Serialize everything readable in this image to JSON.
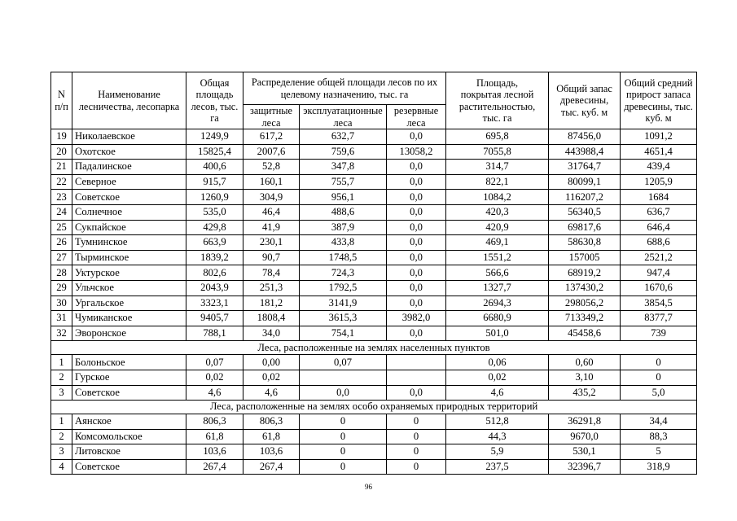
{
  "page": {
    "number": "96"
  },
  "table": {
    "header": {
      "col_n": "N\nп/п",
      "col_name": "Наименование\nлесничества, лесопарка",
      "col_total_area": "Общая\nплощадь\nлесов, тыс. га",
      "col_distribution_group": "Распределение общей площади лесов по их\nцелевому назначению, тыс. га",
      "col_protective": "защитные\nлеса",
      "col_operational": "эксплуатационные\nлеса",
      "col_reserve": "резервные\nлеса",
      "col_covered": "Площадь,\nпокрытая лесной\nрастительностью,\nтыс. га",
      "col_stock": "Общий запас\nдревесины,\nтыс. куб. м",
      "col_growth": "Общий средний\nприрост запаса\nдревесины, тыс.\nкуб. м"
    },
    "sections": [
      {
        "title": "",
        "rows": [
          [
            "19",
            "Николаевское",
            "1249,9",
            "617,2",
            "632,7",
            "0,0",
            "695,8",
            "87456,0",
            "1091,2"
          ],
          [
            "20",
            "Охотское",
            "15825,4",
            "2007,6",
            "759,6",
            "13058,2",
            "7055,8",
            "443988,4",
            "4651,4"
          ],
          [
            "21",
            "Падалинское",
            "400,6",
            "52,8",
            "347,8",
            "0,0",
            "314,7",
            "31764,7",
            "439,4"
          ],
          [
            "22",
            "Северное",
            "915,7",
            "160,1",
            "755,7",
            "0,0",
            "822,1",
            "80099,1",
            "1205,9"
          ],
          [
            "23",
            "Советское",
            "1260,9",
            "304,9",
            "956,1",
            "0,0",
            "1084,2",
            "116207,2",
            "1684"
          ],
          [
            "24",
            "Солнечное",
            "535,0",
            "46,4",
            "488,6",
            "0,0",
            "420,3",
            "56340,5",
            "636,7"
          ],
          [
            "25",
            "Сукпайское",
            "429,8",
            "41,9",
            "387,9",
            "0,0",
            "420,9",
            "69817,6",
            "646,4"
          ],
          [
            "26",
            "Тумнинское",
            "663,9",
            "230,1",
            "433,8",
            "0,0",
            "469,1",
            "58630,8",
            "688,6"
          ],
          [
            "27",
            "Тырминское",
            "1839,2",
            "90,7",
            "1748,5",
            "0,0",
            "1551,2",
            "157005",
            "2521,2"
          ],
          [
            "28",
            "Уктурское",
            "802,6",
            "78,4",
            "724,3",
            "0,0",
            "566,6",
            "68919,2",
            "947,4"
          ],
          [
            "29",
            "Ульчское",
            "2043,9",
            "251,3",
            "1792,5",
            "0,0",
            "1327,7",
            "137430,2",
            "1670,6"
          ],
          [
            "30",
            "Ургальское",
            "3323,1",
            "181,2",
            "3141,9",
            "0,0",
            "2694,3",
            "298056,2",
            "3854,5"
          ],
          [
            "31",
            "Чумиканское",
            "9405,7",
            "1808,4",
            "3615,3",
            "3982,0",
            "6680,9",
            "713349,2",
            "8377,7"
          ],
          [
            "32",
            "Эворонское",
            "788,1",
            "34,0",
            "754,1",
            "0,0",
            "501,0",
            "45458,6",
            "739"
          ]
        ]
      },
      {
        "title": "Леса, расположенные на землях населенных пунктов",
        "rows": [
          [
            "1",
            "Болоньское",
            "0,07",
            "0,00",
            "0,07",
            "",
            "0,06",
            "0,60",
            "0"
          ],
          [
            "2",
            "Гурское",
            "0,02",
            "0,02",
            "",
            "",
            "0,02",
            "3,10",
            "0"
          ],
          [
            "3",
            "Советское",
            "4,6",
            "4,6",
            "0,0",
            "0,0",
            "4,6",
            "435,2",
            "5,0"
          ]
        ]
      },
      {
        "title": "Леса, расположенные на землях особо охраняемых природных территорий",
        "rows": [
          [
            "1",
            "Аянское",
            "806,3",
            "806,3",
            "0",
            "0",
            "512,8",
            "36291,8",
            "34,4"
          ],
          [
            "2",
            "Комсомольское",
            "61,8",
            "61,8",
            "0",
            "0",
            "44,3",
            "9670,0",
            "88,3"
          ],
          [
            "3",
            "Литовское",
            "103,6",
            "103,6",
            "0",
            "0",
            "5,9",
            "530,1",
            "5"
          ],
          [
            "4",
            "Советское",
            "267,4",
            "267,4",
            "0",
            "0",
            "237,5",
            "32396,7",
            "318,9"
          ]
        ]
      }
    ]
  }
}
